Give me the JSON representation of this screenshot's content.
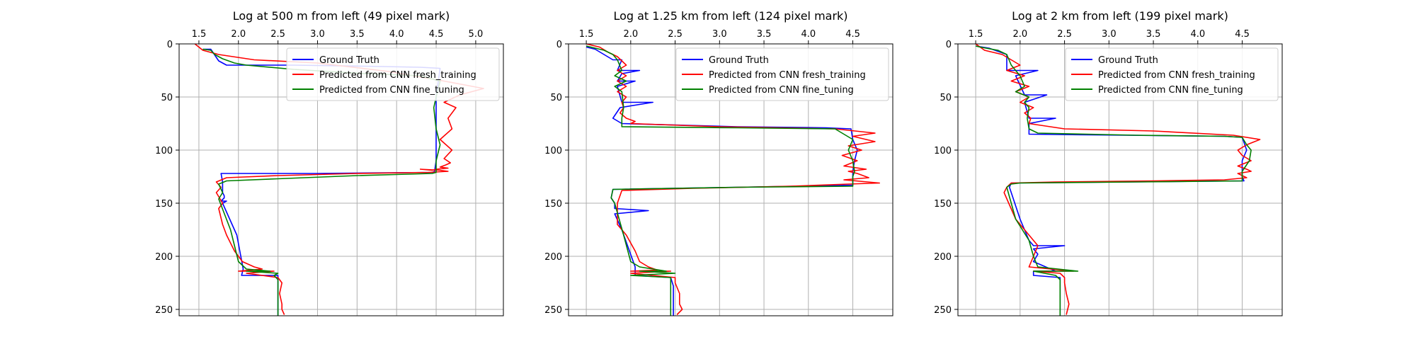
{
  "chart_data": [
    {
      "type": "line",
      "title": "Log at 500 m from left (49 pixel mark)",
      "xlim": [
        1.25,
        5.35
      ],
      "ylim": [
        256,
        0
      ],
      "xticks": [
        "1.5",
        "2.0",
        "2.5",
        "3.0",
        "3.5",
        "4.0",
        "4.5",
        "5.0"
      ],
      "yticks": [
        "0",
        "50",
        "100",
        "150",
        "200",
        "250"
      ],
      "grid": true,
      "legend": "top-right",
      "series": [
        {
          "name": "Ground Truth",
          "color": "#0000ff",
          "x": [
            1.55,
            1.65,
            1.75,
            1.85,
            2.7,
            3.6,
            4.3,
            4.55,
            4.5,
            4.5,
            4.5,
            4.48,
            4.45,
            3.0,
            1.78,
            1.8,
            1.8,
            1.82,
            1.82,
            1.78,
            1.85,
            1.8,
            1.98,
            2.06,
            2.04,
            2.5,
            2.5,
            2.5
          ],
          "y": [
            5,
            5,
            16,
            20,
            20,
            21,
            22,
            23,
            50,
            80,
            110,
            120,
            121,
            122,
            122,
            130,
            140,
            143,
            145,
            148,
            148,
            150,
            180,
            212,
            218,
            218,
            224,
            256
          ]
        },
        {
          "name": "Predicted from CNN fresh_training",
          "color": "#ff0000",
          "x": [
            1.45,
            1.55,
            1.75,
            2.2,
            3.0,
            3.9,
            4.6,
            5.1,
            4.8,
            4.6,
            4.75,
            4.65,
            4.7,
            4.55,
            4.7,
            4.6,
            4.68,
            4.62,
            4.55,
            4.65,
            4.5,
            4.45,
            4.3,
            4.55,
            4.65,
            4.4,
            3.5,
            2.5,
            1.85,
            1.72,
            1.78,
            1.72,
            1.8,
            1.75,
            1.8,
            1.85,
            1.95,
            2.05,
            2.2,
            2.3,
            2.0,
            2.45,
            2.1,
            2.5,
            2.55,
            2.52,
            2.55,
            2.55,
            2.58
          ],
          "y": [
            0,
            6,
            10,
            15,
            18,
            26,
            35,
            42,
            48,
            55,
            60,
            70,
            80,
            90,
            100,
            108,
            112,
            114,
            116,
            117,
            118,
            119,
            118,
            119,
            120,
            121,
            122,
            124,
            126,
            130,
            135,
            140,
            150,
            155,
            170,
            180,
            195,
            205,
            210,
            212,
            214,
            214,
            216,
            220,
            225,
            235,
            245,
            250,
            255
          ]
        },
        {
          "name": "Predicted from CNN fine_tuning",
          "color": "#008000",
          "x": [
            1.55,
            1.65,
            1.7,
            1.8,
            1.95,
            2.1,
            2.7,
            3.6,
            4.3,
            4.55,
            4.5,
            4.47,
            4.5,
            4.55,
            4.5,
            4.5,
            4.5,
            4.45,
            3.5,
            2.5,
            1.85,
            1.75,
            1.8,
            1.75,
            1.9,
            2.0,
            2.1,
            2.4,
            2.1,
            2.5,
            2.45,
            2.5,
            2.5,
            2.5,
            2.5
          ],
          "y": [
            5,
            6,
            10,
            14,
            18,
            20,
            24,
            28,
            30,
            35,
            50,
            60,
            80,
            95,
            110,
            120,
            121,
            122,
            124,
            127,
            129,
            132,
            140,
            146,
            175,
            205,
            212,
            214,
            214,
            216,
            218,
            222,
            230,
            240,
            256
          ]
        }
      ]
    },
    {
      "type": "line",
      "title": "Log at 1.25 km from left (124 pixel mark)",
      "xlim": [
        1.3,
        4.95
      ],
      "ylim": [
        256,
        0
      ],
      "xticks": [
        "1.5",
        "2.0",
        "2.5",
        "3.0",
        "3.5",
        "4.0",
        "4.5"
      ],
      "yticks": [
        "0",
        "50",
        "100",
        "150",
        "200",
        "250"
      ],
      "grid": true,
      "legend": "top-right",
      "series": [
        {
          "name": "Ground Truth",
          "color": "#0000ff",
          "x": [
            1.5,
            1.6,
            1.8,
            1.9,
            1.85,
            2.1,
            1.9,
            1.85,
            2.05,
            1.85,
            1.9,
            2.25,
            1.88,
            1.8,
            1.9,
            3.2,
            4.2,
            4.48,
            4.5,
            4.55,
            4.52,
            4.5,
            4.5,
            4.5,
            3.2,
            1.8,
            1.78,
            1.82,
            1.82,
            2.2,
            1.82,
            1.9,
            2.05,
            2.05,
            2.45,
            2.48,
            2.48,
            2.48
          ],
          "y": [
            3,
            5,
            15,
            15,
            25,
            25,
            28,
            35,
            35,
            40,
            55,
            55,
            60,
            70,
            75,
            78,
            79,
            80,
            90,
            100,
            110,
            120,
            130,
            133,
            135,
            137,
            145,
            150,
            155,
            157,
            160,
            175,
            210,
            218,
            220,
            228,
            240,
            256
          ]
        },
        {
          "name": "Predicted from CNN fresh_training",
          "color": "#ff0000",
          "x": [
            1.5,
            1.65,
            1.75,
            1.85,
            1.95,
            1.85,
            1.95,
            1.85,
            1.95,
            1.85,
            1.95,
            1.9,
            1.92,
            1.88,
            1.95,
            2.05,
            2.0,
            3.0,
            4.3,
            4.75,
            4.5,
            4.75,
            4.45,
            4.6,
            4.38,
            4.55,
            4.4,
            4.65,
            4.45,
            4.55,
            4.68,
            4.4,
            4.8,
            4.45,
            3.8,
            2.7,
            1.9,
            1.85,
            1.85,
            1.85,
            1.95,
            2.05,
            2.1,
            2.2,
            2.3,
            2.0,
            2.45,
            2.0,
            2.5,
            2.5,
            2.55,
            2.55,
            2.58,
            2.52
          ],
          "y": [
            0,
            3,
            8,
            12,
            20,
            25,
            30,
            35,
            40,
            45,
            50,
            55,
            60,
            65,
            70,
            73,
            75,
            78,
            80,
            84,
            87,
            92,
            96,
            100,
            105,
            110,
            115,
            118,
            120,
            122,
            126,
            128,
            131,
            132,
            134,
            136,
            138,
            150,
            160,
            170,
            180,
            195,
            205,
            210,
            213,
            214,
            214,
            216,
            220,
            225,
            235,
            245,
            250,
            255
          ]
        },
        {
          "name": "Predicted from CNN fine_tuning",
          "color": "#008000",
          "x": [
            1.5,
            1.55,
            1.7,
            1.8,
            1.85,
            1.9,
            1.82,
            1.95,
            1.82,
            1.9,
            1.92,
            1.9,
            1.9,
            1.9,
            3.2,
            4.3,
            4.5,
            4.45,
            4.5,
            4.52,
            4.5,
            4.5,
            4.5,
            4.5,
            3.2,
            1.8,
            1.78,
            1.82,
            1.92,
            2.0,
            2.1,
            2.4,
            2.1,
            2.5,
            2.0,
            2.45,
            2.45,
            2.45,
            2.45
          ],
          "y": [
            2,
            3,
            6,
            10,
            15,
            25,
            30,
            35,
            40,
            45,
            60,
            70,
            75,
            78,
            79,
            80,
            90,
            100,
            110,
            120,
            125,
            130,
            133,
            134,
            135,
            137,
            145,
            150,
            180,
            205,
            210,
            214,
            214,
            216,
            218,
            220,
            226,
            240,
            256
          ]
        }
      ]
    },
    {
      "type": "line",
      "title": "Log at 2 km from left (199 pixel mark)",
      "xlim": [
        1.3,
        4.95
      ],
      "ylim": [
        256,
        0
      ],
      "xticks": [
        "1.5",
        "2.0",
        "2.5",
        "3.0",
        "3.5",
        "4.0",
        "4.5"
      ],
      "yticks": [
        "0",
        "50",
        "100",
        "150",
        "200",
        "250"
      ],
      "grid": true,
      "legend": "top-right",
      "series": [
        {
          "name": "Ground Truth",
          "color": "#0000ff",
          "x": [
            1.5,
            1.65,
            1.85,
            1.85,
            2.2,
            1.95,
            2.05,
            2.3,
            2.05,
            2.1,
            2.4,
            2.1,
            2.1,
            3.2,
            4.3,
            4.5,
            4.55,
            4.5,
            4.5,
            4.5,
            4.52,
            3.2,
            1.9,
            1.88,
            2.0,
            2.1,
            2.15,
            2.15,
            2.5,
            2.15,
            2.2,
            2.15,
            2.4,
            2.15,
            2.15,
            2.45,
            2.45,
            2.45
          ],
          "y": [
            2,
            4,
            10,
            25,
            25,
            30,
            48,
            48,
            55,
            70,
            70,
            75,
            85,
            86,
            87,
            88,
            100,
            110,
            120,
            125,
            129,
            130,
            131,
            135,
            165,
            185,
            190,
            190,
            190,
            193,
            198,
            205,
            214,
            214,
            218,
            220,
            226,
            256
          ]
        },
        {
          "name": "Predicted from CNN fresh_training",
          "color": "#ff0000",
          "x": [
            1.5,
            1.6,
            1.8,
            1.9,
            2.0,
            1.85,
            2.05,
            1.9,
            2.1,
            1.95,
            2.1,
            2.0,
            2.15,
            2.05,
            2.12,
            2.1,
            2.5,
            3.5,
            4.4,
            4.7,
            4.55,
            4.45,
            4.5,
            4.6,
            4.45,
            4.55,
            4.6,
            4.45,
            4.55,
            4.3,
            3.5,
            2.4,
            1.9,
            1.85,
            1.82,
            1.95,
            2.1,
            2.2,
            2.15,
            2.1,
            2.6,
            2.15,
            2.45,
            2.5,
            2.5,
            2.52,
            2.55,
            2.52
          ],
          "y": [
            0,
            6,
            10,
            15,
            20,
            25,
            30,
            35,
            40,
            45,
            50,
            55,
            60,
            65,
            70,
            75,
            80,
            82,
            86,
            90,
            95,
            100,
            105,
            110,
            115,
            118,
            120,
            122,
            126,
            128,
            129,
            130,
            131,
            135,
            140,
            165,
            180,
            190,
            200,
            210,
            214,
            214,
            216,
            220,
            225,
            235,
            245,
            255
          ]
        },
        {
          "name": "Predicted from CNN fine_tuning",
          "color": "#008000",
          "x": [
            1.5,
            1.55,
            1.75,
            1.85,
            1.9,
            2.0,
            2.05,
            1.95,
            2.1,
            2.05,
            2.1,
            2.08,
            2.1,
            2.2,
            3.3,
            4.3,
            4.5,
            4.55,
            4.6,
            4.58,
            4.5,
            4.5,
            4.5,
            3.3,
            2.0,
            1.9,
            1.85,
            1.95,
            2.1,
            2.15,
            2.2,
            2.65,
            2.15,
            2.4,
            2.45,
            2.45,
            2.45
          ],
          "y": [
            2,
            3,
            6,
            10,
            20,
            30,
            40,
            45,
            50,
            55,
            60,
            70,
            80,
            84,
            86,
            87,
            88,
            95,
            100,
            110,
            120,
            125,
            129,
            130,
            131,
            132,
            135,
            165,
            185,
            200,
            210,
            214,
            214,
            218,
            222,
            230,
            256
          ]
        }
      ]
    }
  ]
}
